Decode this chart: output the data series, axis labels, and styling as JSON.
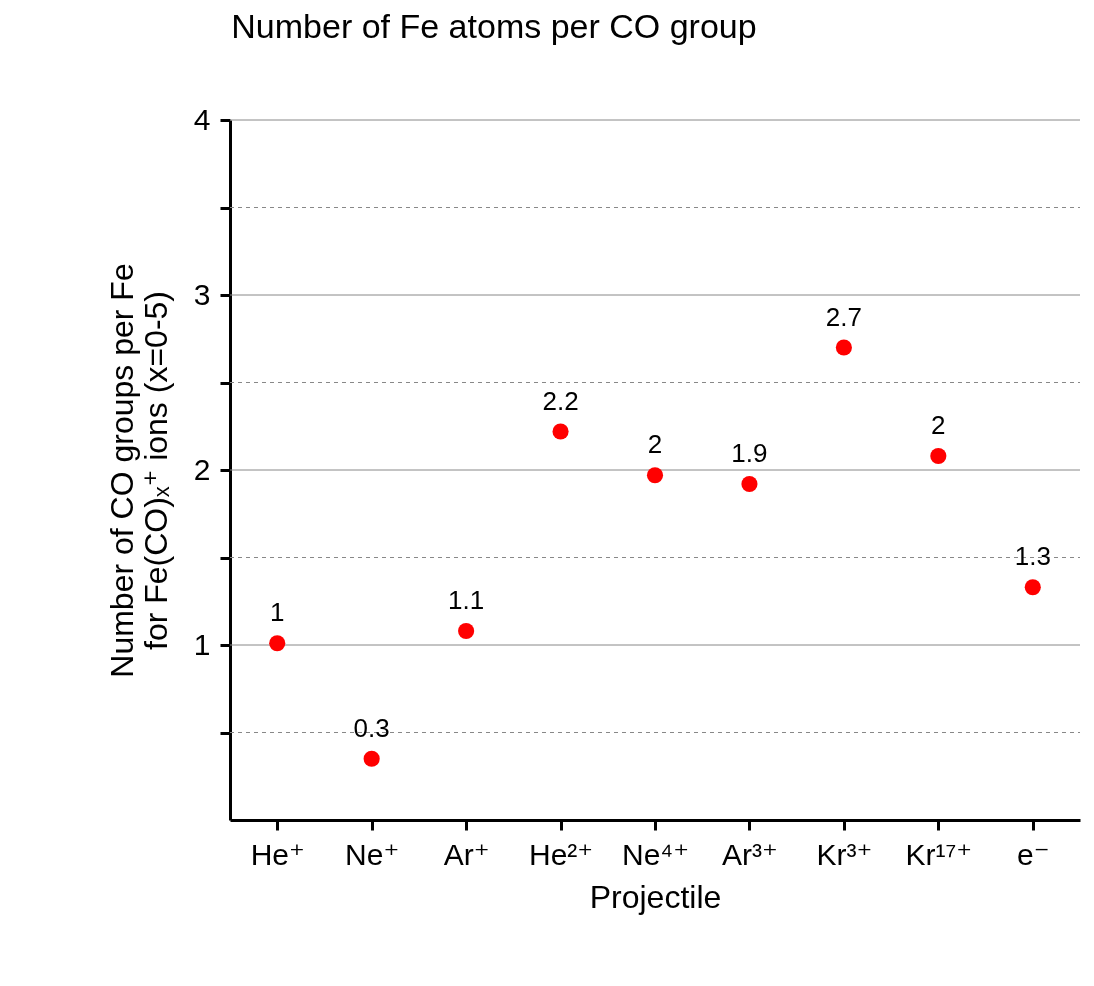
{
  "chart_data": {
    "type": "scatter",
    "title": "Number of Fe atoms per CO group",
    "xlabel": "Projectile",
    "ylabel": "Number of CO groups per Fe\nfor Fe(CO)ₓ⁺ ions (x=0-5)",
    "categories": [
      "He⁺",
      "Ne⁺",
      "Ar⁺",
      "He²⁺",
      "Ne⁴⁺",
      "Ar³⁺",
      "Kr³⁺",
      "Kr¹⁷⁺",
      "e⁻"
    ],
    "series": [
      {
        "color": "#ff0000",
        "values": [
          1.01,
          0.35,
          1.08,
          2.22,
          1.97,
          1.92,
          2.7,
          2.08,
          1.33
        ],
        "value_labels": [
          "1",
          "0.3",
          "1.1",
          "2.2",
          "2",
          "1.9",
          "2.7",
          "2",
          "1.3"
        ]
      }
    ],
    "ylim": [
      0,
      4
    ],
    "yticks": [
      {
        "value": 0.5,
        "label": null
      },
      1,
      {
        "value": 1.5,
        "label": null
      },
      2,
      {
        "value": 2.5,
        "label": null
      },
      3,
      {
        "value": 3.5,
        "label": null
      },
      4
    ],
    "grid": "y",
    "marker": "circle"
  }
}
